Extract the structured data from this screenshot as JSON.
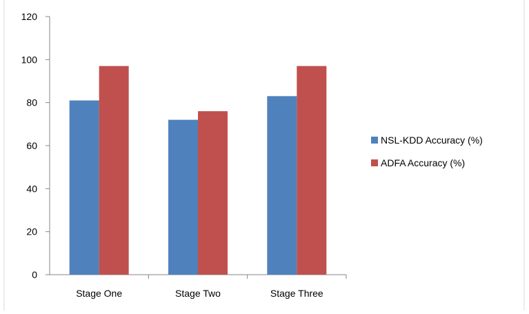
{
  "chart_data": {
    "type": "bar",
    "categories": [
      "Stage One",
      "Stage Two",
      "Stage Three"
    ],
    "series": [
      {
        "name": "NSL-KDD Accuracy (%)",
        "values": [
          81,
          72,
          83
        ],
        "color": "#4F81BD"
      },
      {
        "name": "ADFA Accuracy (%)",
        "values": [
          97,
          76,
          97
        ],
        "color": "#C0504D"
      }
    ],
    "ylim": [
      0,
      120
    ],
    "yticks": [
      0,
      20,
      40,
      60,
      80,
      100,
      120
    ],
    "grid": false,
    "legend": "right"
  }
}
